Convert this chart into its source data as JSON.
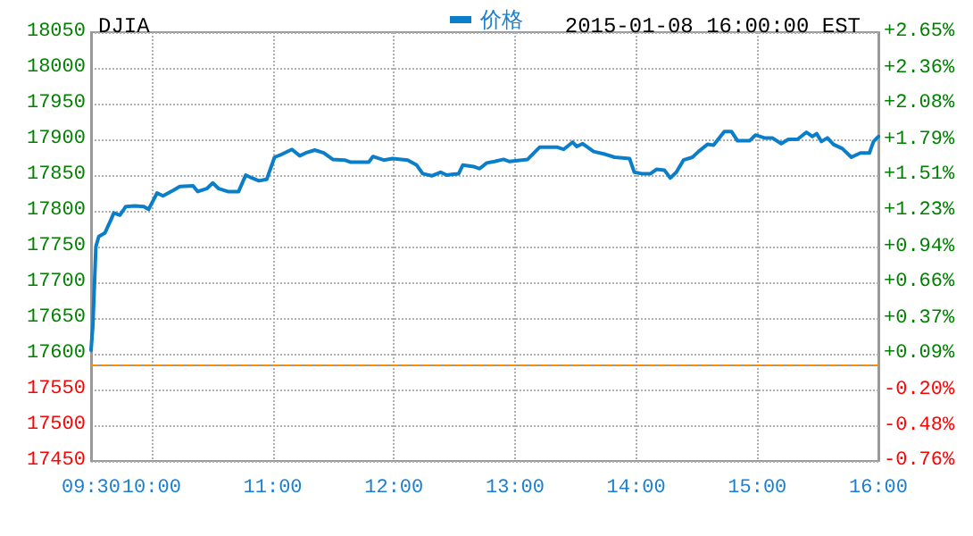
{
  "chart_data": {
    "type": "line",
    "title": "DJIA",
    "subtitle": "2015-01-08 16:00:00 EST",
    "x": [
      9.5,
      9.515,
      9.54,
      9.564,
      9.614,
      9.663,
      9.688,
      9.738,
      9.787,
      9.861,
      9.936,
      9.975,
      10.045,
      10.094,
      10.183,
      10.233,
      10.342,
      10.381,
      10.455,
      10.505,
      10.554,
      10.629,
      10.718,
      10.777,
      10.827,
      10.886,
      10.95,
      11.015,
      11.074,
      11.158,
      11.223,
      11.272,
      11.347,
      11.421,
      11.495,
      11.594,
      11.644,
      11.792,
      11.827,
      11.916,
      11.99,
      12.114,
      12.188,
      12.238,
      12.312,
      12.386,
      12.436,
      12.535,
      12.569,
      12.658,
      12.708,
      12.767,
      12.832,
      12.906,
      12.955,
      13.104,
      13.203,
      13.351,
      13.401,
      13.475,
      13.51,
      13.559,
      13.649,
      13.748,
      13.822,
      13.946,
      13.985,
      14.045,
      14.119,
      14.168,
      14.233,
      14.282,
      14.332,
      14.391,
      14.465,
      14.515,
      14.589,
      14.639,
      14.728,
      14.787,
      14.837,
      14.936,
      14.985,
      15.06,
      15.124,
      15.198,
      15.257,
      15.332,
      15.406,
      15.455,
      15.49,
      15.53,
      15.579,
      15.629,
      15.703,
      15.777,
      15.851,
      15.926,
      15.96,
      16.0
    ],
    "series": [
      {
        "name": "价格",
        "color": "#0a7ec8",
        "values": [
          17605,
          17640,
          17750,
          17764,
          17769,
          17787,
          17797,
          17794,
          17806,
          17807,
          17806,
          17802,
          17825,
          17821,
          17829,
          17834,
          17835,
          17827,
          17831,
          17839,
          17831,
          17827,
          17827,
          17850,
          17846,
          17842,
          17844,
          17875,
          17879,
          17886,
          17877,
          17881,
          17885,
          17881,
          17872,
          17871,
          17868,
          17868,
          17876,
          17871,
          17873,
          17871,
          17864,
          17852,
          17849,
          17854,
          17850,
          17852,
          17864,
          17862,
          17859,
          17867,
          17869,
          17872,
          17869,
          17872,
          17889,
          17889,
          17886,
          17896,
          17890,
          17894,
          17883,
          17879,
          17875,
          17873,
          17854,
          17852,
          17852,
          17858,
          17857,
          17846,
          17854,
          17871,
          17875,
          17883,
          17893,
          17892,
          17911,
          17911,
          17898,
          17898,
          17906,
          17902,
          17902,
          17894,
          17900,
          17900,
          17910,
          17904,
          17908,
          17897,
          17902,
          17893,
          17887,
          17875,
          17881,
          17881,
          17897,
          17904
        ]
      }
    ],
    "xlim": [
      9.5,
      16
    ],
    "xticks": [
      {
        "value": 9.5,
        "label": "09:30"
      },
      {
        "value": 10,
        "label": "10:00"
      },
      {
        "value": 11,
        "label": "11:00"
      },
      {
        "value": 12,
        "label": "12:00"
      },
      {
        "value": 13,
        "label": "13:00"
      },
      {
        "value": 14,
        "label": "14:00"
      },
      {
        "value": 15,
        "label": "15:00"
      },
      {
        "value": 16,
        "label": "16:00"
      }
    ],
    "ylim": [
      17450,
      18050
    ],
    "yticks": [
      17450,
      17500,
      17550,
      17600,
      17650,
      17700,
      17750,
      17800,
      17850,
      17900,
      17950,
      18000,
      18050
    ],
    "y2lim": [
      -0.76,
      2.65
    ],
    "y2ticks": [
      {
        "value": -0.76,
        "label": "-0.76%"
      },
      {
        "value": -0.48,
        "label": "-0.48%"
      },
      {
        "value": -0.2,
        "label": "-0.20%"
      },
      {
        "value": 0.09,
        "label": "+0.09%"
      },
      {
        "value": 0.37,
        "label": "+0.37%"
      },
      {
        "value": 0.66,
        "label": "+0.66%"
      },
      {
        "value": 0.94,
        "label": "+0.94%"
      },
      {
        "value": 1.23,
        "label": "+1.23%"
      },
      {
        "value": 1.51,
        "label": "+1.51%"
      },
      {
        "value": 1.79,
        "label": "+1.79%"
      },
      {
        "value": 2.08,
        "label": "+2.08%"
      },
      {
        "value": 2.36,
        "label": "+2.36%"
      },
      {
        "value": 2.65,
        "label": "+2.65%"
      }
    ],
    "ref_lines": [
      {
        "axis": "y",
        "value": 17584,
        "color": "#ff8c00",
        "line_style": "dashed"
      }
    ],
    "grid": true,
    "legend": "top",
    "marker": "none",
    "line_style": "solid"
  }
}
